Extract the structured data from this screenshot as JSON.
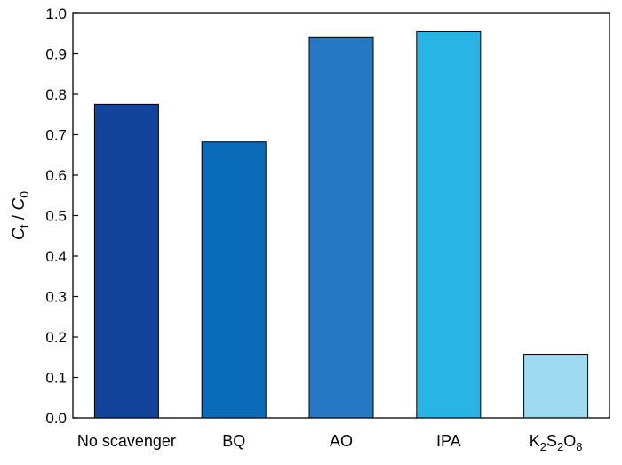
{
  "chart_data": {
    "type": "bar",
    "categories": [
      "No scavenger",
      "BQ",
      "AO",
      "IPA",
      "K2S2O8"
    ],
    "values": [
      0.775,
      0.682,
      0.94,
      0.955,
      0.157
    ],
    "bar_colors": [
      "#12449b",
      "#0a6bb8",
      "#2478c4",
      "#29b4e6",
      "#9fdaf3"
    ],
    "ylabel": "Ct / C0",
    "ylim": [
      0,
      1.0
    ],
    "yticks": [
      0.0,
      0.1,
      0.2,
      0.3,
      0.4,
      0.5,
      0.6,
      0.7,
      0.8,
      0.9,
      1.0
    ],
    "ytick_labels": [
      "0.0",
      "0.1",
      "0.2",
      "0.3",
      "0.4",
      "0.5",
      "0.6",
      "0.7",
      "0.8",
      "0.9",
      "1.0"
    ],
    "grid": false,
    "legend": "none"
  }
}
